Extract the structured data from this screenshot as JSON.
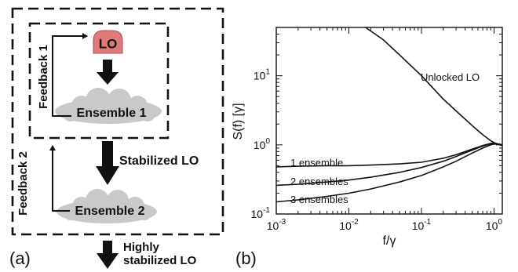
{
  "panel_a": {
    "label": "(a)",
    "lo_label": "LO",
    "ensemble1_label": "Ensemble 1",
    "ensemble2_label": "Ensemble 2",
    "feedback1_label": "Feedback 1",
    "feedback2_label": "Feedback 2",
    "stabilized_label": "Stabilized LO",
    "highly_line1": "Highly",
    "highly_line2": "stabilized LO",
    "colors": {
      "lo": "#e07a7a",
      "cloud": "#c9c9c9",
      "arrow": "#111111"
    }
  },
  "panel_b": {
    "label": "(b)"
  },
  "chart_data": {
    "type": "line",
    "xlabel": "f/γ",
    "ylabel": "S(f) [γ]",
    "xscale": "log",
    "yscale": "log",
    "xlim": [
      0.001,
      1.3
    ],
    "ylim": [
      0.1,
      50
    ],
    "xticks": [
      {
        "value": 0.001,
        "base": "10",
        "exp": "-3"
      },
      {
        "value": 0.01,
        "base": "10",
        "exp": "-2"
      },
      {
        "value": 0.1,
        "base": "10",
        "exp": "-1"
      },
      {
        "value": 1,
        "base": "10",
        "exp": "0"
      }
    ],
    "yticks": [
      {
        "value": 0.1,
        "base": "10",
        "exp": "-1"
      },
      {
        "value": 1,
        "base": "10",
        "exp": "0"
      },
      {
        "value": 10,
        "base": "10",
        "exp": "1"
      }
    ],
    "series": [
      {
        "name": "Unlocked LO",
        "x": [
          0.017,
          0.03,
          0.05,
          0.1,
          0.2,
          0.3,
          0.5,
          0.7,
          0.9,
          1.0,
          1.1,
          1.3
        ],
        "y": [
          50,
          33,
          20,
          10,
          4.6,
          3.1,
          1.9,
          1.4,
          1.15,
          1.08,
          1.03,
          1.0
        ]
      },
      {
        "name": "1 ensemble",
        "x": [
          0.001,
          0.002,
          0.005,
          0.01,
          0.02,
          0.05,
          0.1,
          0.2,
          0.3,
          0.5,
          0.7,
          0.9,
          1.0,
          1.1,
          1.3
        ],
        "y": [
          0.48,
          0.49,
          0.5,
          0.5,
          0.51,
          0.53,
          0.56,
          0.64,
          0.72,
          0.87,
          0.98,
          1.05,
          1.06,
          1.04,
          1.0
        ]
      },
      {
        "name": "2 ensembles",
        "x": [
          0.001,
          0.002,
          0.005,
          0.01,
          0.02,
          0.05,
          0.1,
          0.2,
          0.3,
          0.5,
          0.7,
          0.9,
          1.0,
          1.1,
          1.3
        ],
        "y": [
          0.26,
          0.27,
          0.29,
          0.31,
          0.34,
          0.4,
          0.47,
          0.58,
          0.68,
          0.84,
          0.96,
          1.04,
          1.06,
          1.04,
          1.0
        ]
      },
      {
        "name": "3 ensembles",
        "x": [
          0.001,
          0.002,
          0.005,
          0.01,
          0.02,
          0.05,
          0.1,
          0.2,
          0.3,
          0.5,
          0.7,
          0.9,
          1.0,
          1.1,
          1.3
        ],
        "y": [
          0.15,
          0.16,
          0.18,
          0.2,
          0.23,
          0.29,
          0.36,
          0.48,
          0.58,
          0.76,
          0.9,
          1.0,
          1.03,
          1.02,
          0.98
        ]
      }
    ]
  }
}
